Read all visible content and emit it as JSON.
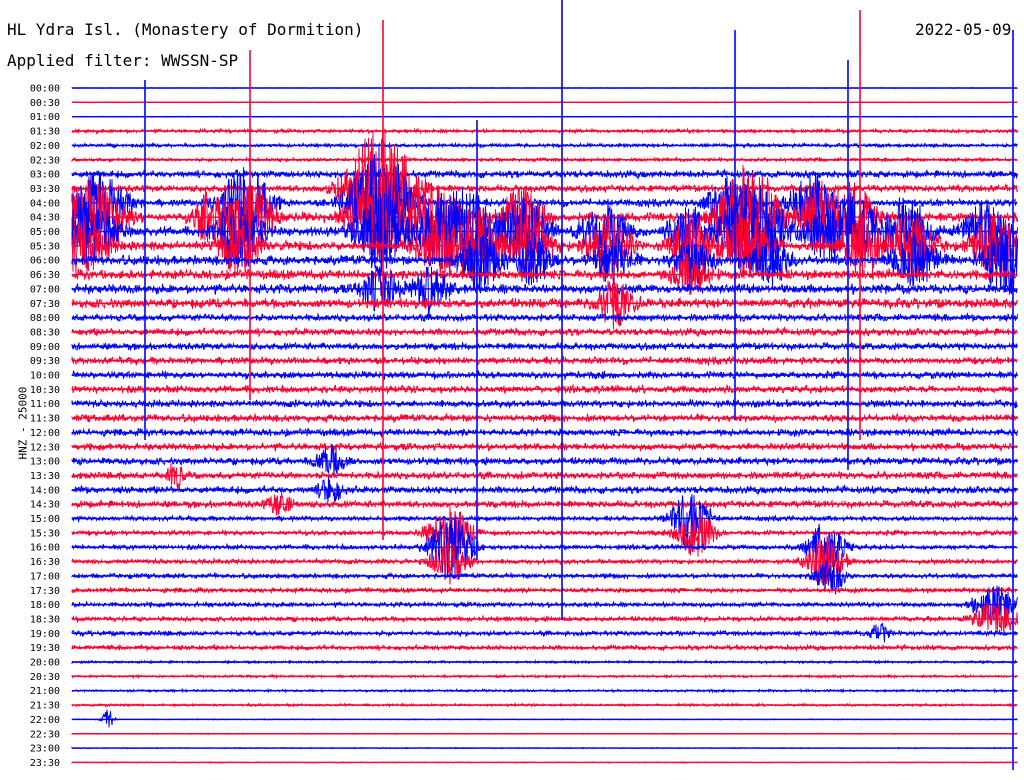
{
  "header": {
    "station": "HL Ydra Isl. (Monastery of Dormition)",
    "date": "2022-05-09",
    "filter": "Applied filter: WWSSN-SP"
  },
  "chart_data": {
    "type": "line",
    "subtype": "helicorder",
    "ylabel": "HNZ - 25000",
    "tick_labels": [
      "00:00",
      "00:30",
      "01:00",
      "01:30",
      "02:00",
      "02:30",
      "03:00",
      "03:30",
      "04:00",
      "04:30",
      "05:00",
      "05:30",
      "06:00",
      "06:30",
      "07:00",
      "07:30",
      "08:00",
      "08:30",
      "09:00",
      "09:30",
      "10:00",
      "10:30",
      "11:00",
      "11:30",
      "12:00",
      "12:30",
      "13:00",
      "13:30",
      "14:00",
      "14:30",
      "15:00",
      "15:30",
      "16:00",
      "16:30",
      "17:00",
      "17:30",
      "18:00",
      "18:30",
      "19:00",
      "19:30",
      "20:00",
      "20:30",
      "21:00",
      "21:30",
      "22:00",
      "22:30",
      "23:00",
      "23:30"
    ],
    "trace_colors": [
      "#0000ff",
      "#ff0033"
    ],
    "grid": false
  }
}
